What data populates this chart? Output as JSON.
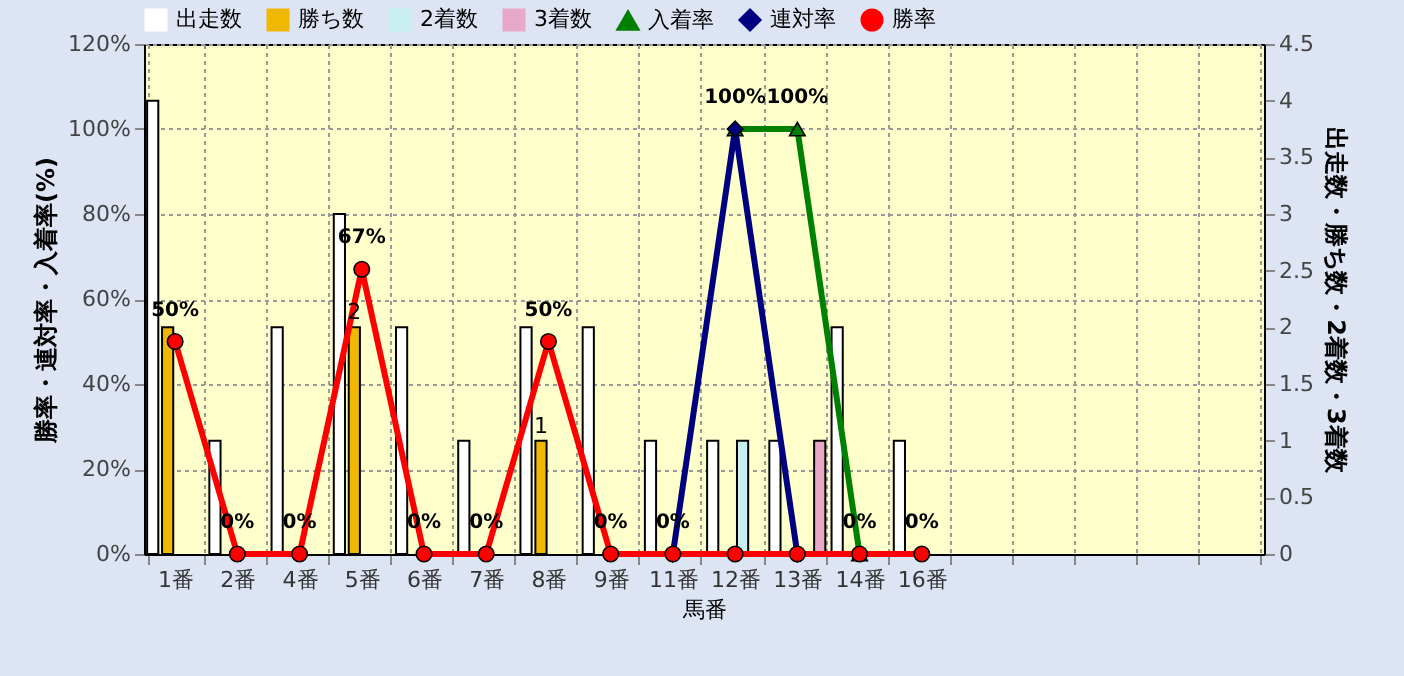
{
  "chart_data": {
    "type": "bar",
    "xlabel": "馬番",
    "ylabel": "勝率・連対率・入着率(%)",
    "y2label": "出走数・勝ち数・2着数・3着数",
    "categories": [
      "1番",
      "2番",
      "4番",
      "5番",
      "6番",
      "7番",
      "8番",
      "9番",
      "11番",
      "12番",
      "13番",
      "14番",
      "16番",
      null,
      null,
      null,
      null,
      null
    ],
    "series": [
      {
        "name": "出走数",
        "axis": "y2",
        "color": "#ffffff",
        "values": [
          4,
          1,
          2,
          3,
          2,
          1,
          2,
          2,
          1,
          1,
          1,
          2,
          1,
          null,
          null,
          null,
          null,
          null
        ]
      },
      {
        "name": "勝ち数",
        "axis": "y2",
        "color": "#f0b800",
        "values": [
          2,
          0,
          0,
          2,
          0,
          0,
          1,
          0,
          0,
          0,
          0,
          0,
          0,
          null,
          null,
          null,
          null,
          null
        ],
        "value_labels": [
          null,
          null,
          null,
          "2",
          null,
          null,
          "1",
          null,
          null,
          null,
          null,
          null,
          null,
          null,
          null,
          null,
          null,
          null
        ]
      },
      {
        "name": "2着数",
        "axis": "y2",
        "color": "#c8f0f0",
        "values": [
          0,
          0,
          0,
          0,
          0,
          0,
          0,
          0,
          0,
          1,
          0,
          0,
          0,
          null,
          null,
          null,
          null,
          null
        ]
      },
      {
        "name": "3着数",
        "axis": "y2",
        "color": "#e8a8c8",
        "values": [
          0,
          0,
          0,
          0,
          0,
          0,
          0,
          0,
          0,
          0,
          1,
          0,
          0,
          null,
          null,
          null,
          null,
          null
        ]
      },
      {
        "name": "入着率",
        "type": "line",
        "axis": "y",
        "color": "#008000",
        "marker": "triangle",
        "values": [
          null,
          null,
          null,
          null,
          null,
          null,
          null,
          null,
          null,
          100,
          100,
          0,
          null,
          null,
          null,
          null,
          null,
          null
        ],
        "value_labels": [
          null,
          null,
          null,
          null,
          null,
          null,
          null,
          null,
          null,
          "100%",
          "100%",
          null,
          null,
          null,
          null,
          null,
          null,
          null
        ]
      },
      {
        "name": "連対率",
        "type": "line",
        "axis": "y",
        "color": "#000080",
        "marker": "diamond",
        "values": [
          null,
          null,
          null,
          null,
          null,
          null,
          null,
          null,
          0,
          100,
          0,
          null,
          null,
          null,
          null,
          null,
          null,
          null
        ]
      },
      {
        "name": "勝率",
        "type": "line",
        "axis": "y",
        "color": "#ff0000",
        "marker": "circle",
        "values": [
          50,
          0,
          0,
          67,
          0,
          0,
          50,
          0,
          0,
          0,
          0,
          0,
          0,
          null,
          null,
          null,
          null,
          null
        ],
        "value_labels": [
          "50%",
          "0%",
          "0%",
          "67%",
          "0%",
          "0%",
          "50%",
          "0%",
          "0%",
          null,
          null,
          "0%",
          "0%",
          null,
          null,
          null,
          null,
          null
        ]
      }
    ],
    "ylim": [
      0,
      120
    ],
    "yticks": [
      {
        "value": 0,
        "label": "0%"
      },
      {
        "value": 20,
        "label": "20%"
      },
      {
        "value": 40,
        "label": "40%"
      },
      {
        "value": 60,
        "label": "60%"
      },
      {
        "value": 80,
        "label": "80%"
      },
      {
        "value": 100,
        "label": "100%"
      },
      {
        "value": 120,
        "label": "120%"
      }
    ],
    "y2lim": [
      0,
      4.5
    ],
    "y2ticks": [
      0,
      0.5,
      1,
      1.5,
      2,
      2.5,
      3,
      3.5,
      4,
      4.5
    ],
    "grid": true,
    "legend": "top"
  }
}
